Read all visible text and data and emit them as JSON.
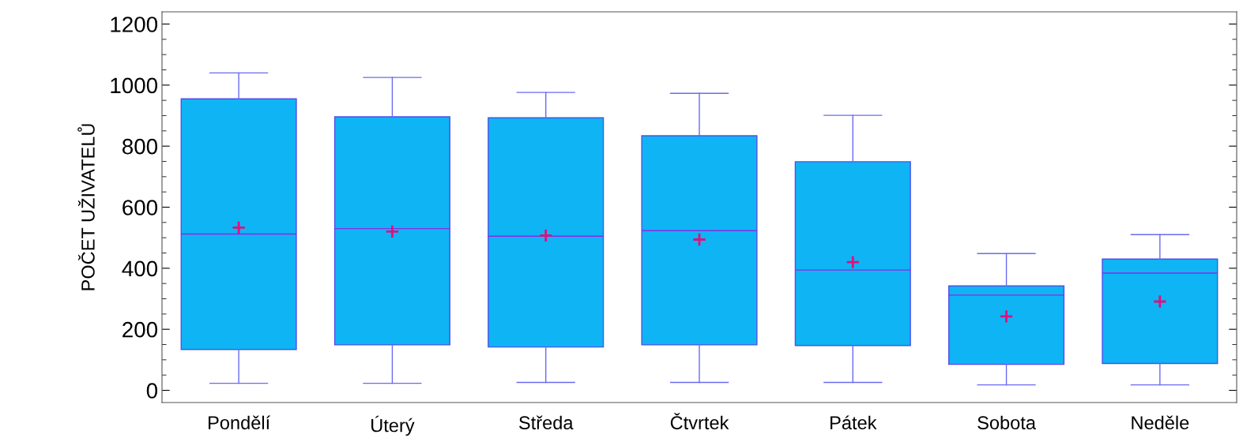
{
  "chart_data": {
    "type": "box",
    "ylabel": "POČET UŽIVATELŮ",
    "categories": [
      "Pondělí",
      "Úterý",
      "Středa",
      "Čtvrtek",
      "Pátek",
      "Sobota",
      "Neděle"
    ],
    "boxes": [
      {
        "low": 23,
        "q1": 134,
        "median": 512,
        "q3": 955,
        "high": 1040,
        "mean": 533
      },
      {
        "low": 23,
        "q1": 149,
        "median": 530,
        "q3": 896,
        "high": 1025,
        "mean": 520
      },
      {
        "low": 26,
        "q1": 142,
        "median": 505,
        "q3": 893,
        "high": 976,
        "mean": 507
      },
      {
        "low": 26,
        "q1": 149,
        "median": 523,
        "q3": 834,
        "high": 973,
        "mean": 494
      },
      {
        "low": 26,
        "q1": 147,
        "median": 394,
        "q3": 749,
        "high": 901,
        "mean": 420
      },
      {
        "low": 18,
        "q1": 85,
        "median": 312,
        "q3": 342,
        "high": 448,
        "mean": 242
      },
      {
        "low": 18,
        "q1": 88,
        "median": 384,
        "q3": 430,
        "high": 510,
        "mean": 291
      }
    ],
    "color": "#0fb4f5",
    "ylim": [
      -40,
      1240
    ],
    "yticks": [
      0,
      200,
      400,
      600,
      800,
      1000,
      1200
    ],
    "grid": false
  }
}
